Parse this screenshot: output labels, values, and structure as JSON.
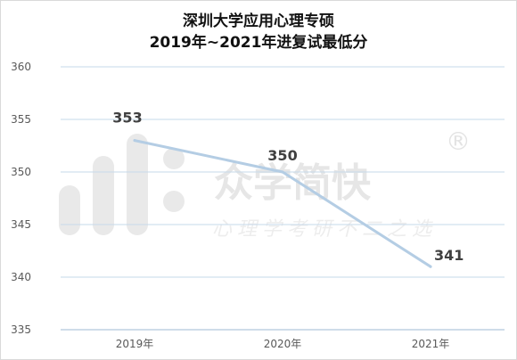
{
  "chart_data": {
    "type": "line",
    "title_line1": "深圳大学应用心理专硕",
    "title_line2": "2019年~2021年进复试最低分",
    "categories": [
      "2019年",
      "2020年",
      "2021年"
    ],
    "values": [
      353,
      350,
      341
    ],
    "data_labels": [
      "353",
      "350",
      "341"
    ],
    "ylim": [
      335,
      360
    ],
    "y_ticks": [
      "335",
      "340",
      "345",
      "350",
      "355",
      "360"
    ],
    "grid": true,
    "line_color": "#b4cde4"
  },
  "watermark": {
    "brand": "众学简快",
    "registered": "®",
    "slogan": "心理学考研不二之选"
  }
}
